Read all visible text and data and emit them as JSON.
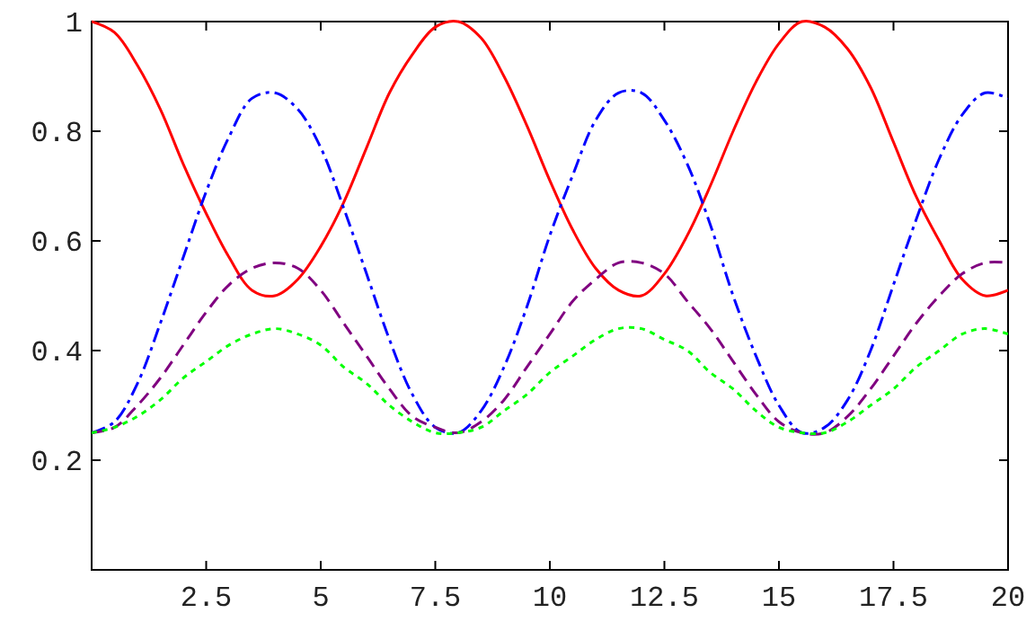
{
  "chart_data": {
    "type": "line",
    "x": [
      0,
      0.5,
      1,
      1.5,
      2,
      2.5,
      3,
      3.5,
      4,
      4.5,
      5,
      5.5,
      6,
      6.5,
      7,
      7.5,
      8,
      8.5,
      9,
      9.5,
      10,
      10.5,
      11,
      11.5,
      12,
      12.5,
      13,
      13.5,
      14,
      14.5,
      15,
      15.5,
      16,
      16.5,
      17,
      17.5,
      18,
      18.5,
      19,
      19.5,
      20
    ],
    "series": [
      {
        "color": "#ff0000",
        "line_style": "solid",
        "values": [
          1.0,
          0.98,
          0.92,
          0.84,
          0.74,
          0.65,
          0.57,
          0.51,
          0.5,
          0.53,
          0.59,
          0.67,
          0.77,
          0.87,
          0.94,
          0.99,
          1.0,
          0.97,
          0.9,
          0.81,
          0.71,
          0.62,
          0.55,
          0.51,
          0.5,
          0.54,
          0.61,
          0.7,
          0.8,
          0.89,
          0.96,
          1.0,
          0.99,
          0.95,
          0.88,
          0.78,
          0.68,
          0.6,
          0.53,
          0.5,
          0.51
        ]
      },
      {
        "color": "#0000ff",
        "line_style": "dashdot",
        "values": [
          0.25,
          0.27,
          0.34,
          0.45,
          0.57,
          0.69,
          0.79,
          0.86,
          0.87,
          0.84,
          0.77,
          0.66,
          0.54,
          0.42,
          0.32,
          0.26,
          0.25,
          0.29,
          0.37,
          0.48,
          0.61,
          0.72,
          0.82,
          0.87,
          0.87,
          0.82,
          0.74,
          0.63,
          0.5,
          0.39,
          0.3,
          0.25,
          0.26,
          0.31,
          0.4,
          0.52,
          0.64,
          0.75,
          0.83,
          0.87,
          0.86
        ]
      },
      {
        "color": "#800080",
        "line_style": "dashed",
        "values": [
          0.25,
          0.26,
          0.3,
          0.35,
          0.41,
          0.47,
          0.52,
          0.55,
          0.56,
          0.55,
          0.51,
          0.45,
          0.39,
          0.33,
          0.28,
          0.26,
          0.25,
          0.27,
          0.31,
          0.37,
          0.43,
          0.49,
          0.53,
          0.56,
          0.56,
          0.54,
          0.49,
          0.44,
          0.38,
          0.32,
          0.27,
          0.25,
          0.25,
          0.28,
          0.33,
          0.39,
          0.45,
          0.5,
          0.54,
          0.56,
          0.56
        ]
      },
      {
        "color": "#00ff00",
        "line_style": "dotted",
        "values": [
          0.25,
          0.26,
          0.28,
          0.31,
          0.35,
          0.38,
          0.41,
          0.43,
          0.44,
          0.43,
          0.41,
          0.37,
          0.34,
          0.3,
          0.27,
          0.25,
          0.25,
          0.26,
          0.29,
          0.32,
          0.36,
          0.39,
          0.42,
          0.44,
          0.44,
          0.42,
          0.4,
          0.36,
          0.33,
          0.29,
          0.26,
          0.25,
          0.25,
          0.27,
          0.3,
          0.33,
          0.37,
          0.4,
          0.43,
          0.44,
          0.43
        ]
      }
    ],
    "xlim": [
      0,
      20
    ],
    "xticks": [
      {
        "value": 2.5,
        "label": "2.5"
      },
      {
        "value": 5,
        "label": "5"
      },
      {
        "value": 7.5,
        "label": "7.5"
      },
      {
        "value": 10,
        "label": "10"
      },
      {
        "value": 12.5,
        "label": "12.5"
      },
      {
        "value": 15,
        "label": "15"
      },
      {
        "value": 17.5,
        "label": "17.5"
      },
      {
        "value": 20,
        "label": "20"
      }
    ],
    "ylim": [
      0,
      1
    ],
    "grid": false,
    "yticks": [
      {
        "value": 0.2,
        "label": "0.2"
      },
      {
        "value": 0.4,
        "label": "0.4"
      },
      {
        "value": 0.6,
        "label": "0.6"
      },
      {
        "value": 0.8,
        "label": "0.8"
      },
      {
        "value": 1,
        "label": "1"
      }
    ],
    "tick_labels": true
  }
}
